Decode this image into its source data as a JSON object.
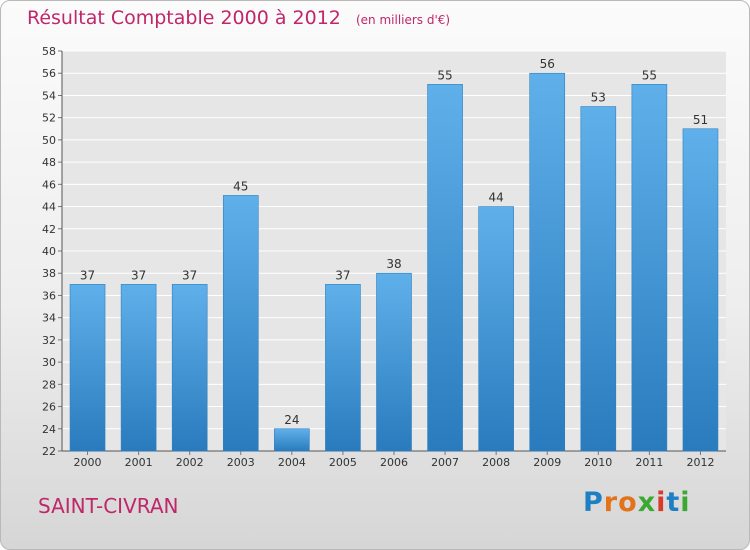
{
  "chart_data": {
    "type": "bar",
    "title": "Résultat Comptable 2000 à 2012",
    "unit": "(en milliers d'€)",
    "categories": [
      "2000",
      "2001",
      "2002",
      "2003",
      "2004",
      "2005",
      "2006",
      "2007",
      "2008",
      "2009",
      "2010",
      "2011",
      "2012"
    ],
    "values": [
      37,
      37,
      37,
      45,
      24,
      37,
      38,
      55,
      44,
      56,
      53,
      55,
      51
    ],
    "ylim": [
      22,
      58
    ],
    "ytick_step": 2,
    "grid": true,
    "colors": {
      "bar_light": "#5fb0ea",
      "bar_dark": "#2a7bbd",
      "grid": "#ffffff",
      "accent": "#c0266a"
    }
  },
  "footer": {
    "city": "SAINT-CIVRAN",
    "logo_letters": [
      {
        "ch": "P",
        "color": "#1f7fc4"
      },
      {
        "ch": "r",
        "color": "#e2731b"
      },
      {
        "ch": "o",
        "color": "#e2731b"
      },
      {
        "ch": "x",
        "color": "#3aa832"
      },
      {
        "ch": "i",
        "color": "#d83a2e"
      },
      {
        "ch": "t",
        "color": "#1f7fc4"
      },
      {
        "ch": "i",
        "color": "#3aa832"
      }
    ]
  }
}
